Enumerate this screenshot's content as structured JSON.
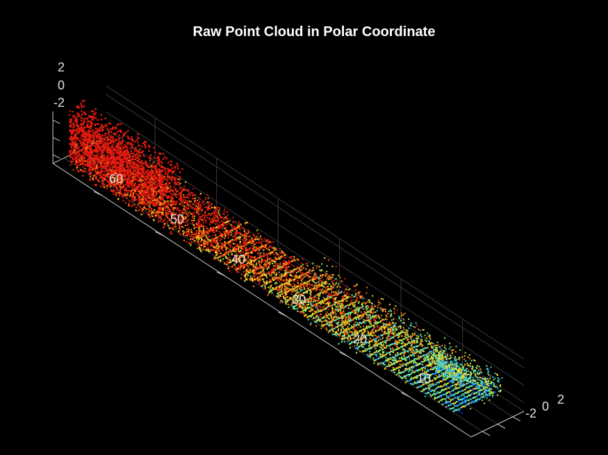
{
  "chart_data": {
    "type": "scatter",
    "subtype": "3d-point-cloud",
    "title": "Raw Point Cloud in Polar Coordinate",
    "xlabel": "",
    "ylabel": "",
    "zlabel": "",
    "x_ticks": [
      "-2",
      "0",
      "2"
    ],
    "y_ticks": [
      "10",
      "20",
      "30",
      "40",
      "50",
      "60"
    ],
    "z_ticks": [
      "2",
      "0",
      "-2"
    ],
    "xlim": [
      -3.5,
      3.5
    ],
    "ylim": [
      3,
      68
    ],
    "zlim": [
      -3,
      3
    ],
    "grid": true,
    "colormap": "jet",
    "background": "#000000",
    "colors": [
      "#0a2dff",
      "#1fa5ff",
      "#3fe0d0",
      "#9ff05a",
      "#ffd21c",
      "#ff7a12",
      "#e81a0f"
    ]
  }
}
